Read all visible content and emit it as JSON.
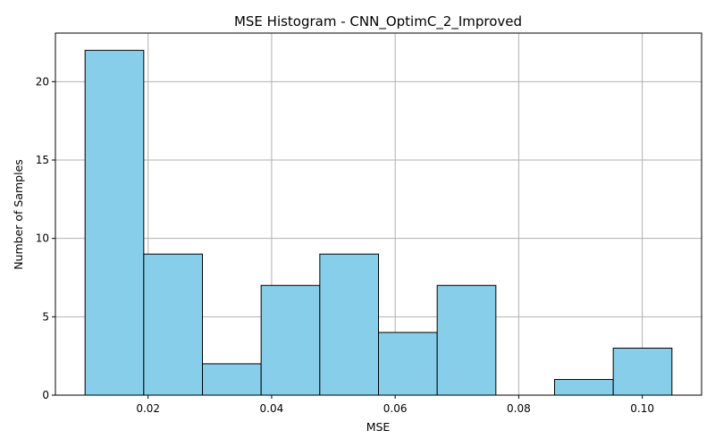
{
  "chart_data": {
    "type": "bar",
    "title": "MSE Histogram - CNN_OptimC_2_Improved",
    "xlabel": "MSE",
    "ylabel": "Number of Samples",
    "bin_edges": [
      0.0098,
      0.0193,
      0.0288,
      0.0383,
      0.0478,
      0.0573,
      0.0668,
      0.0763,
      0.0858,
      0.0953,
      0.1048
    ],
    "counts": [
      22,
      9,
      2,
      7,
      9,
      4,
      7,
      0,
      1,
      3
    ],
    "xlim": [
      0.005,
      0.1096
    ],
    "ylim": [
      0,
      23.1
    ],
    "xticks": [
      0.02,
      0.04,
      0.06,
      0.08,
      0.1
    ],
    "xtick_labels": [
      "0.02",
      "0.04",
      "0.06",
      "0.08",
      "0.10"
    ],
    "yticks": [
      0,
      5,
      10,
      15,
      20
    ],
    "ytick_labels": [
      "0",
      "5",
      "10",
      "15",
      "20"
    ],
    "grid": true,
    "bar_color": "#87ceeb",
    "edge_color": "#000000"
  }
}
